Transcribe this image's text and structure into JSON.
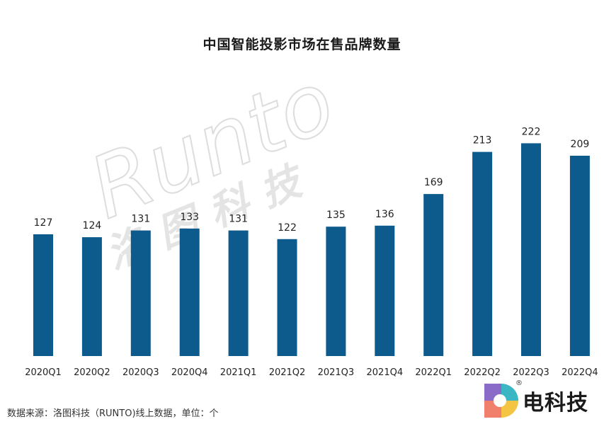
{
  "chart_data": {
    "type": "bar",
    "title": "中国智能投影市场在售品牌数量",
    "categories": [
      "2020Q1",
      "2020Q2",
      "2020Q3",
      "2020Q4",
      "2021Q1",
      "2021Q2",
      "2021Q3",
      "2021Q4",
      "2022Q1",
      "2022Q2",
      "2022Q3",
      "2022Q4"
    ],
    "values": [
      127,
      124,
      131,
      133,
      131,
      122,
      135,
      136,
      169,
      213,
      222,
      209
    ],
    "xlabel": "",
    "ylabel": "",
    "ylim": [
      0,
      240
    ],
    "grid": false,
    "bar_color": "#0d5a8c"
  },
  "source_text": "数据来源：洛图科技（RUNTO)线上数据，单位：个",
  "watermark": {
    "latin": "Runto",
    "cjk": "洛图科技",
    "color": "#cfcfcf"
  },
  "logo": {
    "text": "电科技",
    "registered": "®",
    "icon": "colorful-d-logo-icon"
  }
}
